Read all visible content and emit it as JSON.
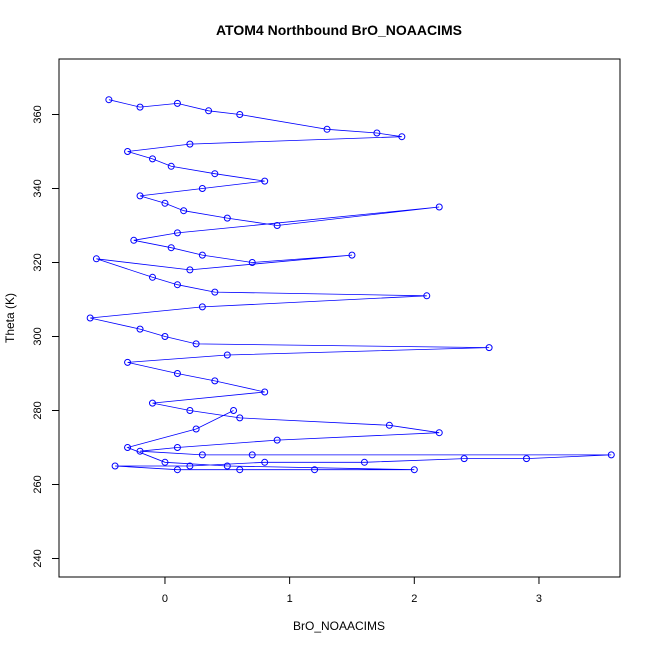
{
  "chart_data": {
    "type": "line",
    "title": "ATOM4 Northbound BrO_NOAACIMS",
    "xlabel": "BrO_NOAACIMS",
    "ylabel": "Theta (K)",
    "xlim": [
      -0.85,
      3.65
    ],
    "ylim": [
      235,
      375
    ],
    "x_ticks": [
      0,
      1,
      2,
      3
    ],
    "y_ticks": [
      240,
      260,
      280,
      300,
      320,
      340,
      360
    ],
    "grid": false,
    "legend": "none",
    "line_color": "#0000ff",
    "marker": "open-circle",
    "series": [
      {
        "values_note_free": true,
        "x": [
          -0.45,
          -0.2,
          0.1,
          0.35,
          0.6,
          1.3,
          1.7,
          1.9,
          0.2,
          -0.3,
          -0.1,
          0.05,
          0.4,
          0.8,
          0.3,
          -0.2,
          0.0,
          0.15,
          0.5,
          0.9,
          2.2,
          0.1,
          -0.25,
          0.05,
          0.3,
          0.7,
          1.5,
          0.2,
          -0.55,
          -0.1,
          0.1,
          0.4,
          2.1,
          0.3,
          -0.6,
          -0.2,
          0.0,
          0.25,
          2.6,
          0.5,
          -0.3,
          0.1,
          0.4,
          0.8,
          -0.1,
          0.2,
          0.6,
          1.8,
          2.2,
          0.9,
          0.1,
          -0.2,
          0.3,
          0.7,
          3.58,
          2.9,
          2.4,
          1.6,
          0.8,
          0.2,
          -0.4,
          0.1,
          0.6,
          1.2,
          2.0,
          0.5,
          0.0,
          -0.3,
          0.25,
          0.55
        ],
        "y": [
          364,
          362,
          363,
          361,
          360,
          356,
          355,
          354,
          352,
          350,
          348,
          346,
          344,
          342,
          340,
          338,
          336,
          334,
          332,
          330,
          335,
          328,
          326,
          324,
          322,
          320,
          322,
          318,
          321,
          316,
          314,
          312,
          311,
          308,
          305,
          302,
          300,
          298,
          297,
          295,
          293,
          290,
          288,
          285,
          282,
          280,
          278,
          276,
          274,
          272,
          270,
          269,
          268,
          268,
          268,
          267,
          267,
          266,
          266,
          265,
          265,
          264,
          264,
          264,
          264,
          265,
          266,
          270,
          275,
          280
        ]
      }
    ]
  }
}
